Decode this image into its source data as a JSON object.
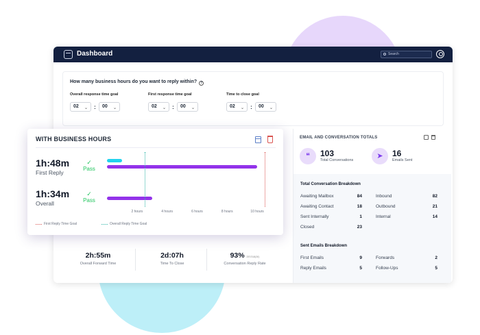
{
  "app": {
    "title": "Dashboard",
    "search_placeholder": "Search"
  },
  "question": {
    "text": "How many business hours do you want to reply within?",
    "goals": [
      {
        "label": "Overall response time goal",
        "hours": "02",
        "minutes": "00"
      },
      {
        "label": "First response time goal",
        "hours": "02",
        "minutes": "00"
      },
      {
        "label": "Time to close goal",
        "hours": "02",
        "minutes": "00"
      }
    ]
  },
  "business_card": {
    "title": "WITH BUSINESS HOURS",
    "metrics": [
      {
        "value": "1h:48m",
        "label": "First Reply",
        "status": "Pass"
      },
      {
        "value": "1h:34m",
        "label": "Overall",
        "status": "Pass"
      }
    ],
    "ticks": [
      "2 hours",
      "4 hours",
      "6 hours",
      "8 hours",
      "10 hours"
    ],
    "legend": {
      "first": "First Reply Time Goal",
      "overall": "Overall Reply Time Goal"
    }
  },
  "chart_data": {
    "type": "bar",
    "orientation": "horizontal",
    "categories": [
      "First Reply",
      "Overall"
    ],
    "series": [
      {
        "values": [
          1.0,
          0.0
        ],
        "color": "#22d3ee"
      },
      {
        "values": [
          10.0,
          3.0
        ],
        "color": "#9333ea"
      }
    ],
    "xlim": [
      0,
      10.5
    ],
    "reference_lines": [
      {
        "name": "First Reply Time Goal",
        "x": 10.5,
        "color": "#d9534f"
      },
      {
        "name": "Overall Reply Time Goal",
        "x": 2.5,
        "color": "#2bb3a6"
      }
    ],
    "legend_position": "bottom"
  },
  "stats": [
    {
      "value": "2h:55m",
      "label": "Overall Forward Time",
      "note": ""
    },
    {
      "value": "2d:07h",
      "label": "Time To Close",
      "note": ""
    },
    {
      "value": "93%",
      "label": "Conversation Reply Rate",
      "note": "257/318(30)"
    }
  ],
  "totals": {
    "title": "EMAIL AND CONVERSATION TOTALS",
    "kpis": [
      {
        "value": "103",
        "label": "Total Conversations",
        "icon": "chat-bubbles-icon"
      },
      {
        "value": "16",
        "label": "Emails Sent",
        "icon": "paper-plane-icon"
      }
    ],
    "conversation_title": "Total Conversation Breakdown",
    "conversation_rows": [
      {
        "label": "Awaiting Mailbox",
        "value": "84"
      },
      {
        "label": "Inbound",
        "value": "82"
      },
      {
        "label": "Awaiting Contact",
        "value": "18"
      },
      {
        "label": "Outbound",
        "value": "21"
      },
      {
        "label": "Sent Internally",
        "value": "1"
      },
      {
        "label": "Internal",
        "value": "14"
      },
      {
        "label": "Closed",
        "value": "23"
      }
    ],
    "emails_title": "Sent Emails Breakdown",
    "email_rows": [
      {
        "label": "First Emails",
        "value": "9"
      },
      {
        "label": "Forwards",
        "value": "2"
      },
      {
        "label": "Reply Emails",
        "value": "5"
      },
      {
        "label": "Follow-Ups",
        "value": "5"
      }
    ]
  },
  "colors": {
    "titlebar": "#132040",
    "accent_purple": "#9333ea",
    "accent_cyan": "#22d3ee",
    "pass_green": "#22c55e"
  }
}
